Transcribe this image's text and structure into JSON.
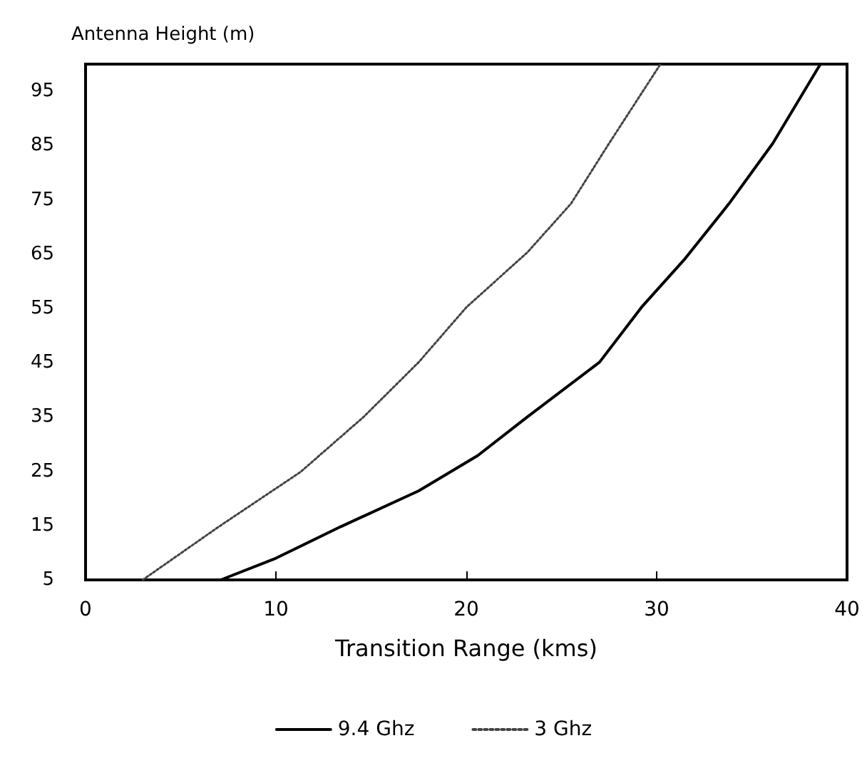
{
  "chart_data": {
    "type": "line",
    "xlabel": "Transition Range (kms)",
    "ylabel": "Antenna Height (m)",
    "xlim": [
      0,
      40
    ],
    "xticks": [
      0,
      10,
      20,
      30,
      40
    ],
    "ylim": [
      5,
      100
    ],
    "yticks": [
      5,
      15,
      25,
      35,
      45,
      55,
      65,
      75,
      85,
      95
    ],
    "grid": false,
    "legend": "bottom",
    "marker": "none",
    "series": [
      {
        "name": "9.4 Ghz",
        "color": "#000000",
        "line_style": "solid",
        "x": [
          7.1,
          10,
          13.4,
          17.5,
          20.6,
          23.2,
          27,
          29.2,
          31.5,
          33.8,
          36.1,
          38.6
        ],
        "values": [
          5,
          9,
          14.8,
          21.4,
          27.9,
          35,
          45.1,
          55.2,
          64.2,
          74.3,
          85.4,
          100
        ]
      },
      {
        "name": "3 Ghz",
        "color": "#444444",
        "line_style": "dotted",
        "x": [
          3,
          7,
          11.3,
          14.6,
          17.5,
          20,
          23.2,
          25.5,
          27.5,
          30.2
        ],
        "values": [
          5,
          14.8,
          24.9,
          35,
          45.1,
          55.2,
          65.3,
          74.3,
          85.4,
          100
        ]
      }
    ]
  }
}
